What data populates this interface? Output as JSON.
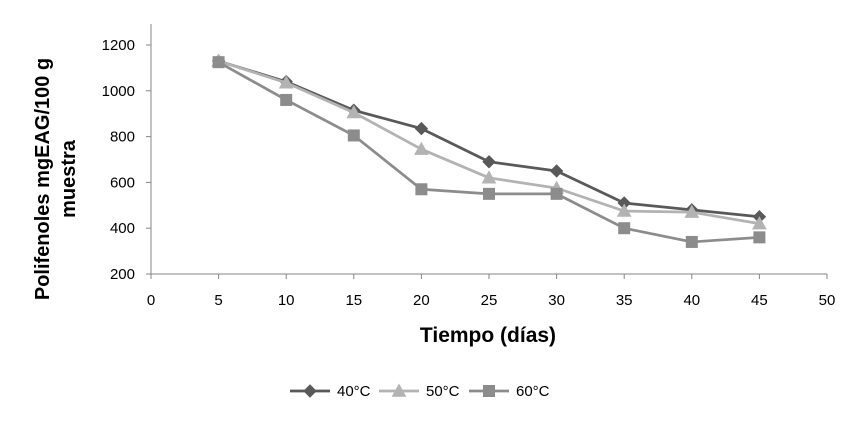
{
  "chart_data": {
    "type": "line",
    "title": "",
    "xlabel": "Tiempo (días)",
    "ylabel_lines": [
      "Polifenoles mgEAG/100 g",
      "muestra"
    ],
    "xlim": [
      0,
      50
    ],
    "ylim": [
      200,
      1200
    ],
    "x_ticks": [
      0,
      5,
      10,
      15,
      20,
      25,
      30,
      35,
      40,
      45,
      50
    ],
    "y_ticks": [
      200,
      400,
      600,
      800,
      1000,
      1200
    ],
    "grid": false,
    "legend_position": "bottom",
    "x": [
      5,
      10,
      15,
      20,
      25,
      30,
      35,
      40,
      45
    ],
    "series": [
      {
        "name": "40°C",
        "marker": "diamond",
        "color": "#595959",
        "values": [
          1130,
          1040,
          915,
          835,
          690,
          650,
          510,
          480,
          450
        ]
      },
      {
        "name": "50°C",
        "marker": "triangle",
        "color": "#b3b3b3",
        "values": [
          1130,
          1035,
          905,
          745,
          620,
          575,
          475,
          470,
          420
        ]
      },
      {
        "name": "60°C",
        "marker": "square",
        "color": "#8c8c8c",
        "values": [
          1125,
          960,
          805,
          570,
          550,
          550,
          400,
          340,
          360
        ]
      }
    ]
  }
}
